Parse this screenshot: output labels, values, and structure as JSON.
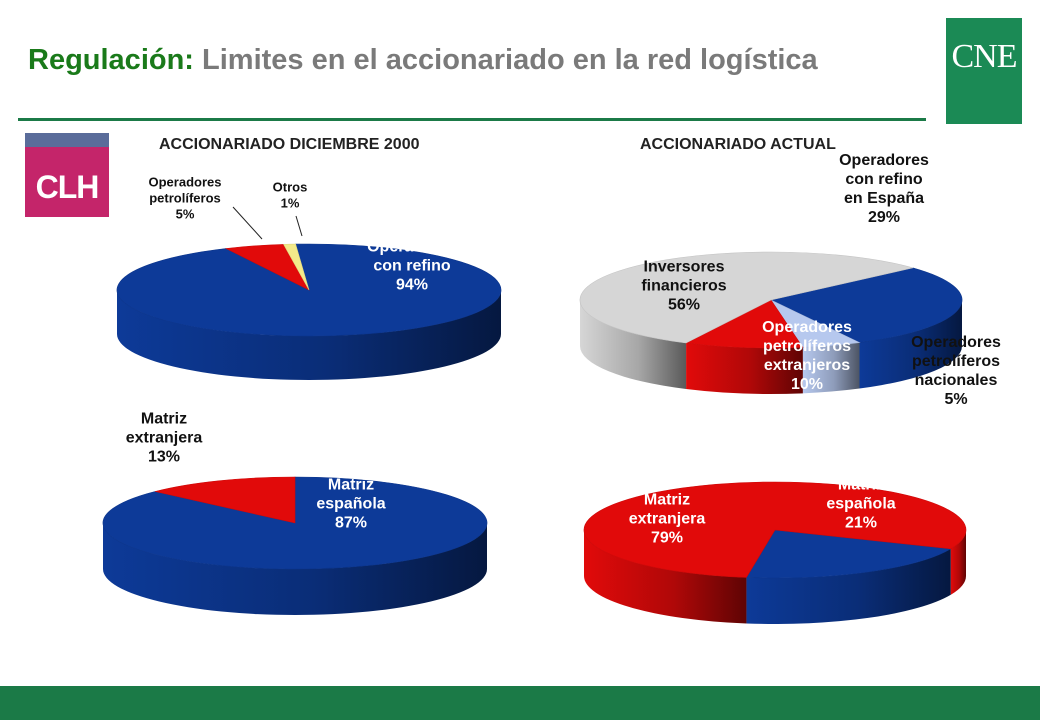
{
  "title": {
    "prefix": "Regulación:",
    "rest": " Limites en el accionariado en la red logística"
  },
  "logos": {
    "cne": "CNE",
    "clh": "CLH"
  },
  "columns": {
    "left": "ACCIONARIADO  DICIEMBRE 2000",
    "right": "ACCIONARIADO  ACTUAL"
  },
  "colors": {
    "blue": "#0d3a98",
    "red": "#e10a0a",
    "grey": "#d6d6d6",
    "yellow": "#f3ea8a",
    "lightblue": "#b6c8ee",
    "slate": "#56606f",
    "green": "#1b7a47"
  },
  "chart_data": [
    {
      "type": "pie",
      "title": "ACCIONARIADO  DICIEMBRE 2000",
      "slices": [
        {
          "label": [
            "Operadores",
            "con refino"
          ],
          "pct_label": "94%",
          "value": 94,
          "color": "blue"
        },
        {
          "label": [
            "Operadores",
            "petrolíferos"
          ],
          "pct_label": "5%",
          "value": 5,
          "color": "red"
        },
        {
          "label": [
            "Otros"
          ],
          "pct_label": "1%",
          "value": 1,
          "color": "yellow"
        }
      ]
    },
    {
      "type": "pie",
      "title": "ACCIONARIADO  ACTUAL",
      "slices": [
        {
          "label": [
            "Operadores",
            "con refino",
            "en España"
          ],
          "pct_label": "29%",
          "value": 29,
          "color": "blue"
        },
        {
          "label": [
            "Operadores",
            "petrolíferos",
            "nacionales"
          ],
          "pct_label": "5%",
          "value": 5,
          "color": "lightblue"
        },
        {
          "label": [
            "Operadores",
            "petrolíferos",
            "extranjeros"
          ],
          "pct_label": "10%",
          "value": 10,
          "color": "red"
        },
        {
          "label": [
            "Inversores",
            "financieros"
          ],
          "pct_label": "56%",
          "value": 56,
          "color": "grey"
        }
      ]
    },
    {
      "type": "pie",
      "slices": [
        {
          "label": [
            "Matriz",
            "española"
          ],
          "pct_label": "87%",
          "value": 87,
          "color": "blue"
        },
        {
          "label": [
            "Matriz",
            "extranjera"
          ],
          "pct_label": "13%",
          "value": 13,
          "color": "red"
        }
      ]
    },
    {
      "type": "pie",
      "slices": [
        {
          "label": [
            "Matriz",
            "española"
          ],
          "pct_label": "21%",
          "value": 21,
          "color": "blue"
        },
        {
          "label": [
            "Matriz",
            "extranjera"
          ],
          "pct_label": "79%",
          "value": 79,
          "color": "red"
        }
      ]
    }
  ]
}
